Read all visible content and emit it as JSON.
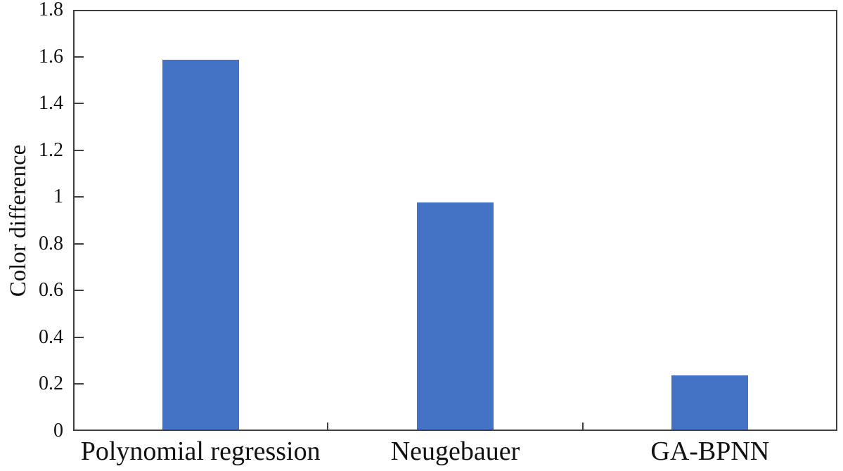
{
  "chart_data": {
    "type": "bar",
    "title": "",
    "categories": [
      "Polynomial regression",
      "Neugebauer",
      "GA-BPNN"
    ],
    "values": [
      1.58,
      0.97,
      0.23
    ],
    "xlabel": "",
    "ylabel": "Color difference",
    "ylim": [
      0,
      1.8
    ],
    "ytick_labels": [
      "0",
      "0.2",
      "0.4",
      "0.6",
      "0.8",
      "1",
      "1.2",
      "1.4",
      "1.6",
      "1.8"
    ],
    "grid": false,
    "legend": "none",
    "bar_color": "#4472C4",
    "axis_color": "#404040",
    "text_color": "#111111",
    "background_color": "#ffffff",
    "bar_width_fraction": 0.3,
    "tick_direction": "inside"
  }
}
